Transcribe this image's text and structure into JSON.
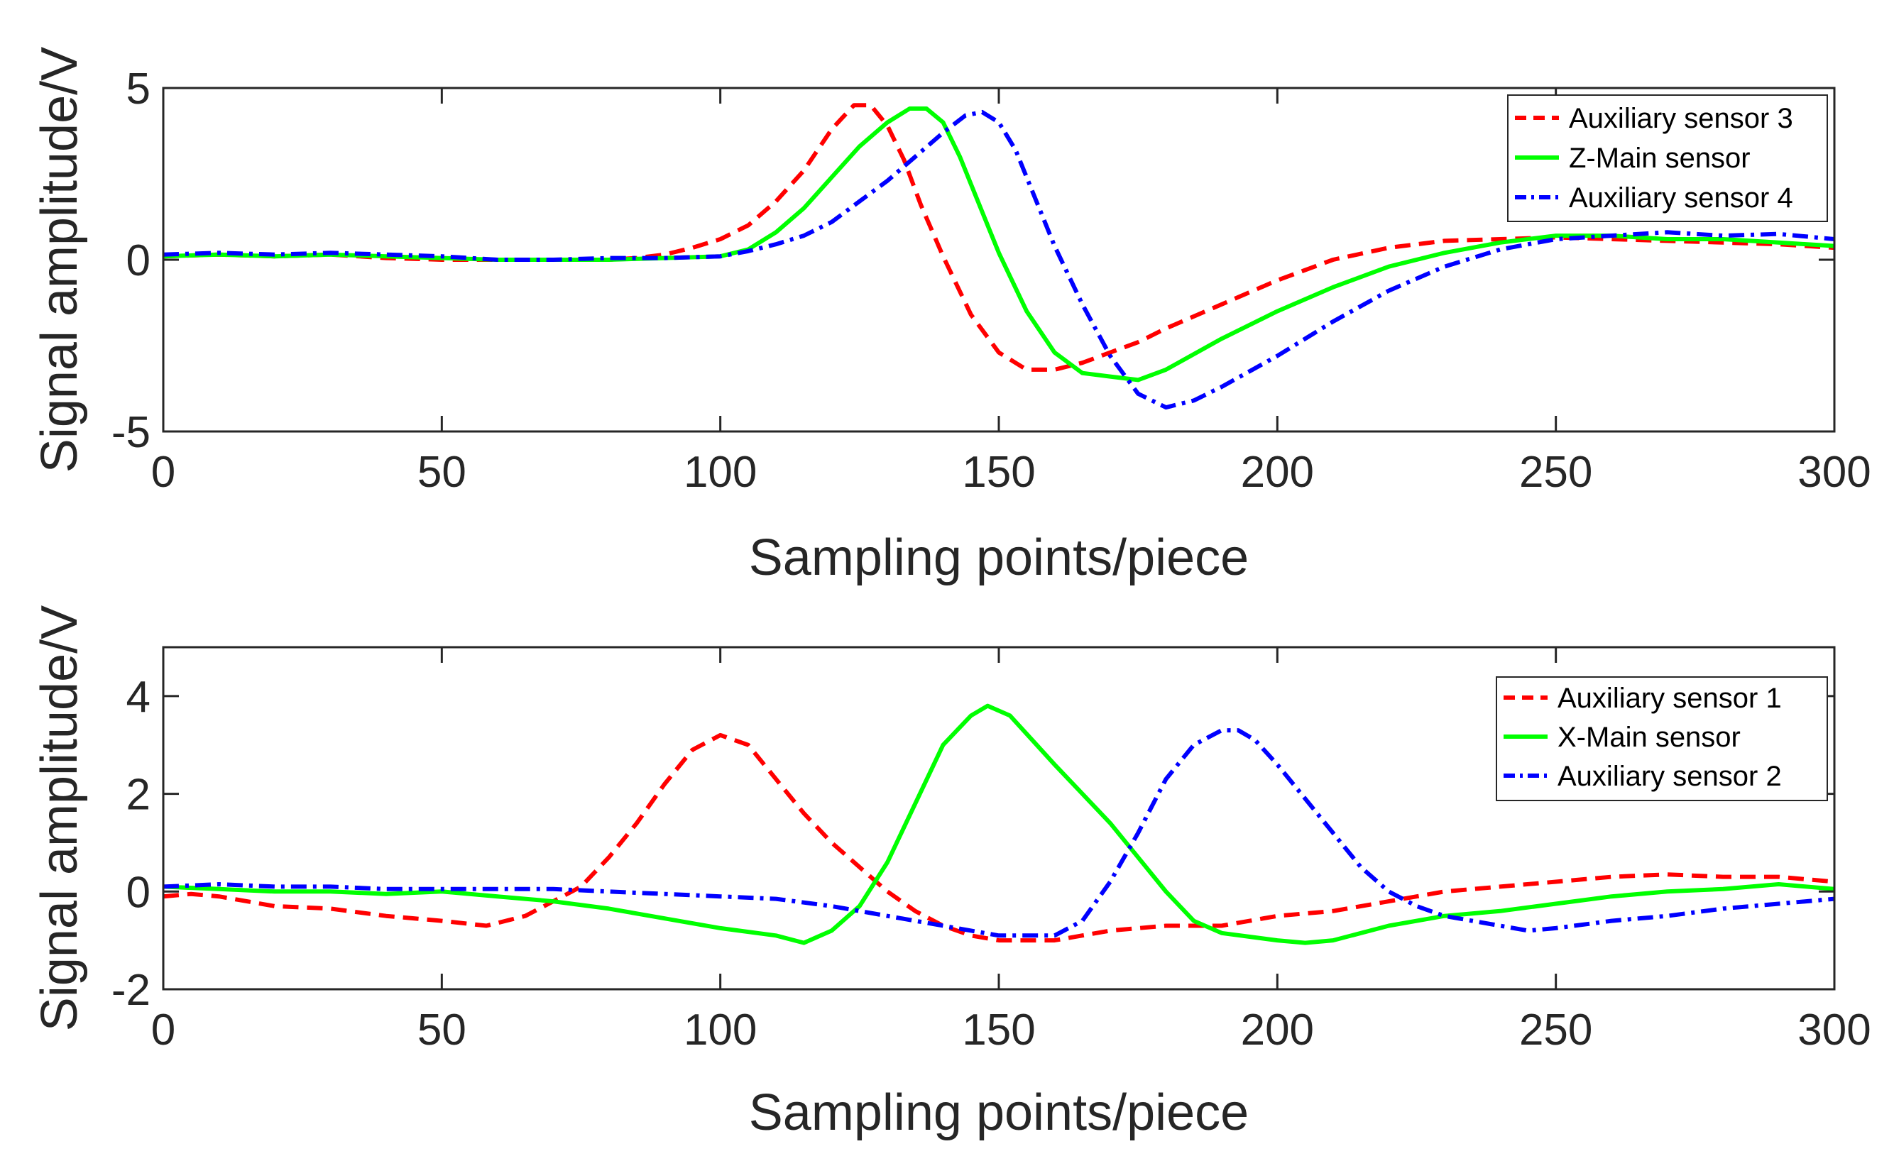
{
  "chart_data": [
    {
      "type": "line",
      "xlabel": "Sampling points/piece",
      "ylabel": "Signal amplitude/V",
      "xlim": [
        0,
        300
      ],
      "ylim": [
        -5,
        5
      ],
      "xticks": [
        0,
        50,
        100,
        150,
        200,
        250,
        300
      ],
      "yticks": [
        -5,
        0,
        5
      ],
      "grid": false,
      "legend_position": "top-right",
      "series": [
        {
          "name": "Auxiliary sensor 3",
          "color": "#ff0000",
          "style": "dashed",
          "x": [
            0,
            10,
            20,
            30,
            40,
            50,
            60,
            70,
            80,
            85,
            90,
            95,
            100,
            105,
            110,
            115,
            120,
            124,
            127,
            130,
            133,
            136,
            140,
            145,
            150,
            155,
            160,
            165,
            170,
            175,
            180,
            190,
            200,
            210,
            220,
            230,
            240,
            250,
            260,
            270,
            280,
            290,
            300
          ],
          "y": [
            0.1,
            0.15,
            0.1,
            0.15,
            0.05,
            0.0,
            0.0,
            0.0,
            0.0,
            0.05,
            0.15,
            0.35,
            0.6,
            1.0,
            1.7,
            2.6,
            3.8,
            4.5,
            4.5,
            3.9,
            2.9,
            1.6,
            0.1,
            -1.6,
            -2.7,
            -3.2,
            -3.2,
            -3.0,
            -2.7,
            -2.4,
            -2.0,
            -1.3,
            -0.6,
            0.0,
            0.35,
            0.55,
            0.6,
            0.65,
            0.6,
            0.55,
            0.5,
            0.45,
            0.35
          ]
        },
        {
          "name": "Z-Main sensor",
          "color": "#00ff00",
          "style": "solid",
          "x": [
            0,
            10,
            20,
            30,
            40,
            50,
            60,
            70,
            80,
            90,
            100,
            105,
            110,
            115,
            120,
            125,
            130,
            134,
            137,
            140,
            143,
            146,
            150,
            155,
            160,
            165,
            170,
            175,
            180,
            190,
            200,
            210,
            220,
            230,
            240,
            250,
            260,
            270,
            280,
            290,
            300
          ],
          "y": [
            0.1,
            0.15,
            0.1,
            0.15,
            0.1,
            0.05,
            0.0,
            0.0,
            0.0,
            0.05,
            0.1,
            0.3,
            0.8,
            1.5,
            2.4,
            3.3,
            4.0,
            4.4,
            4.4,
            4.0,
            3.0,
            1.8,
            0.2,
            -1.5,
            -2.7,
            -3.3,
            -3.4,
            -3.5,
            -3.2,
            -2.3,
            -1.5,
            -0.8,
            -0.2,
            0.2,
            0.5,
            0.7,
            0.7,
            0.6,
            0.6,
            0.5,
            0.4
          ]
        },
        {
          "name": "Auxiliary sensor 4",
          "color": "#0000ff",
          "style": "dashdot",
          "x": [
            0,
            10,
            20,
            30,
            40,
            50,
            60,
            70,
            80,
            90,
            100,
            105,
            110,
            115,
            120,
            125,
            130,
            135,
            140,
            144,
            147,
            150,
            153,
            156,
            160,
            165,
            170,
            175,
            180,
            185,
            190,
            200,
            210,
            220,
            230,
            240,
            250,
            260,
            270,
            280,
            290,
            300
          ],
          "y": [
            0.15,
            0.2,
            0.15,
            0.2,
            0.15,
            0.1,
            0.0,
            0.0,
            0.05,
            0.05,
            0.1,
            0.25,
            0.45,
            0.7,
            1.1,
            1.7,
            2.3,
            3.0,
            3.7,
            4.2,
            4.3,
            4.0,
            3.2,
            2.0,
            0.4,
            -1.3,
            -2.8,
            -3.9,
            -4.3,
            -4.1,
            -3.7,
            -2.8,
            -1.8,
            -0.9,
            -0.2,
            0.3,
            0.6,
            0.7,
            0.8,
            0.7,
            0.75,
            0.6
          ]
        }
      ]
    },
    {
      "type": "line",
      "xlabel": "Sampling points/piece",
      "ylabel": "Signal amplitude/V",
      "xlim": [
        0,
        300
      ],
      "ylim": [
        -2,
        5
      ],
      "xticks": [
        0,
        50,
        100,
        150,
        200,
        250,
        300
      ],
      "yticks": [
        -2,
        0,
        2,
        4
      ],
      "grid": false,
      "legend_position": "top-right",
      "series": [
        {
          "name": "Auxiliary sensor 1",
          "color": "#ff0000",
          "style": "dashed",
          "x": [
            0,
            5,
            10,
            20,
            30,
            40,
            50,
            58,
            65,
            70,
            75,
            80,
            85,
            90,
            95,
            100,
            105,
            110,
            115,
            120,
            125,
            130,
            135,
            140,
            145,
            150,
            155,
            160,
            170,
            180,
            190,
            200,
            210,
            220,
            230,
            240,
            250,
            260,
            270,
            280,
            290,
            300
          ],
          "y": [
            -0.1,
            -0.05,
            -0.1,
            -0.3,
            -0.35,
            -0.5,
            -0.6,
            -0.7,
            -0.5,
            -0.2,
            0.1,
            0.7,
            1.4,
            2.2,
            2.9,
            3.2,
            3.0,
            2.3,
            1.6,
            1.0,
            0.5,
            0.0,
            -0.4,
            -0.7,
            -0.9,
            -1.0,
            -1.0,
            -1.0,
            -0.8,
            -0.7,
            -0.7,
            -0.5,
            -0.4,
            -0.2,
            0.0,
            0.1,
            0.2,
            0.3,
            0.35,
            0.3,
            0.3,
            0.2
          ]
        },
        {
          "name": "X-Main sensor",
          "color": "#00ff00",
          "style": "solid",
          "x": [
            0,
            10,
            20,
            30,
            40,
            50,
            60,
            70,
            80,
            90,
            100,
            110,
            115,
            120,
            125,
            130,
            135,
            140,
            145,
            148,
            152,
            156,
            160,
            165,
            170,
            175,
            180,
            185,
            190,
            200,
            205,
            210,
            220,
            230,
            240,
            250,
            260,
            270,
            280,
            290,
            300
          ],
          "y": [
            0.1,
            0.05,
            0.0,
            0.0,
            -0.05,
            0.0,
            -0.1,
            -0.2,
            -0.35,
            -0.55,
            -0.75,
            -0.9,
            -1.05,
            -0.8,
            -0.3,
            0.6,
            1.8,
            3.0,
            3.6,
            3.8,
            3.6,
            3.1,
            2.6,
            2.0,
            1.4,
            0.7,
            0.0,
            -0.6,
            -0.85,
            -1.0,
            -1.05,
            -1.0,
            -0.7,
            -0.5,
            -0.4,
            -0.25,
            -0.1,
            0.0,
            0.05,
            0.15,
            0.05
          ]
        },
        {
          "name": "Auxiliary sensor 2",
          "color": "#0000ff",
          "style": "dashdot",
          "x": [
            0,
            10,
            20,
            30,
            40,
            50,
            60,
            70,
            80,
            90,
            100,
            110,
            120,
            130,
            140,
            150,
            160,
            165,
            170,
            175,
            180,
            185,
            190,
            193,
            196,
            200,
            205,
            210,
            215,
            220,
            225,
            230,
            240,
            245,
            250,
            260,
            270,
            280,
            290,
            300
          ],
          "y": [
            0.1,
            0.15,
            0.1,
            0.1,
            0.05,
            0.05,
            0.05,
            0.05,
            0.0,
            -0.05,
            -0.1,
            -0.15,
            -0.3,
            -0.5,
            -0.7,
            -0.9,
            -0.9,
            -0.6,
            0.2,
            1.2,
            2.3,
            3.0,
            3.3,
            3.3,
            3.1,
            2.6,
            1.9,
            1.2,
            0.5,
            0.0,
            -0.3,
            -0.5,
            -0.7,
            -0.8,
            -0.75,
            -0.6,
            -0.5,
            -0.35,
            -0.25,
            -0.15
          ]
        }
      ]
    }
  ]
}
